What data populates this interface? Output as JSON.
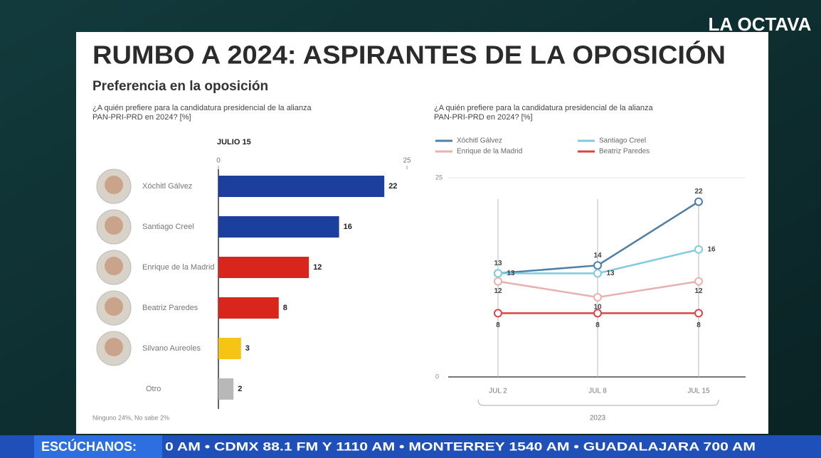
{
  "header": {
    "title": "RUMBO A 2024: ASPIRANTES DE LA OPOSICIÓN",
    "subtitle": "Preferencia en la oposición"
  },
  "logo": "LA OCTAVA",
  "ticker": {
    "label": "ESCÚCHANOS:",
    "text": "0 AM • CDMX 88.1 FM Y 1110 AM • MONTERREY 1540 AM • GUADALAJARA 700 AM"
  },
  "chart_data": [
    {
      "type": "bar",
      "orientation": "horizontal",
      "title": "¿A quién prefiere para la candidatura presidencial de la alianza PAN-PRI-PRD en 2024? [%]",
      "date_label": "JULIO 15",
      "categories": [
        "Xóchitl Gálvez",
        "Santiago Creel",
        "Enrique de la Madrid",
        "Beatriz Paredes",
        "Silvano Aureoles",
        "Otro"
      ],
      "values": [
        22,
        16,
        12,
        8,
        3,
        2
      ],
      "colors": [
        "#1c3f9e",
        "#1c3f9e",
        "#d9261c",
        "#d9261c",
        "#f4c515",
        "#b8b8b8"
      ],
      "xlim": [
        0,
        25
      ],
      "xticks": [
        0,
        25
      ],
      "source": "Ninguno 24%, No sabe 2%"
    },
    {
      "type": "line",
      "title": "¿A quién prefiere para la candidatura presidencial de la alianza PAN-PRI-PRD en 2024? [%]",
      "categories": [
        "JUL 2",
        "JUL 8",
        "JUL 15"
      ],
      "xlabel": "2023",
      "series": [
        {
          "name": "Xóchitl Gálvez",
          "color": "#4f7fa6",
          "values": [
            13,
            14,
            22
          ]
        },
        {
          "name": "Santiago Creel",
          "color": "#7fcbe0",
          "values": [
            13,
            13,
            16
          ]
        },
        {
          "name": "Enrique de la Madrid",
          "color": "#eab0b0",
          "values": [
            12,
            10,
            12
          ]
        },
        {
          "name": "Beatriz Paredes",
          "color": "#d94545",
          "values": [
            8,
            8,
            8
          ]
        }
      ],
      "ylim": [
        0,
        25
      ],
      "yticks": [
        0,
        25
      ],
      "grid": true,
      "legend": "top-left"
    }
  ]
}
